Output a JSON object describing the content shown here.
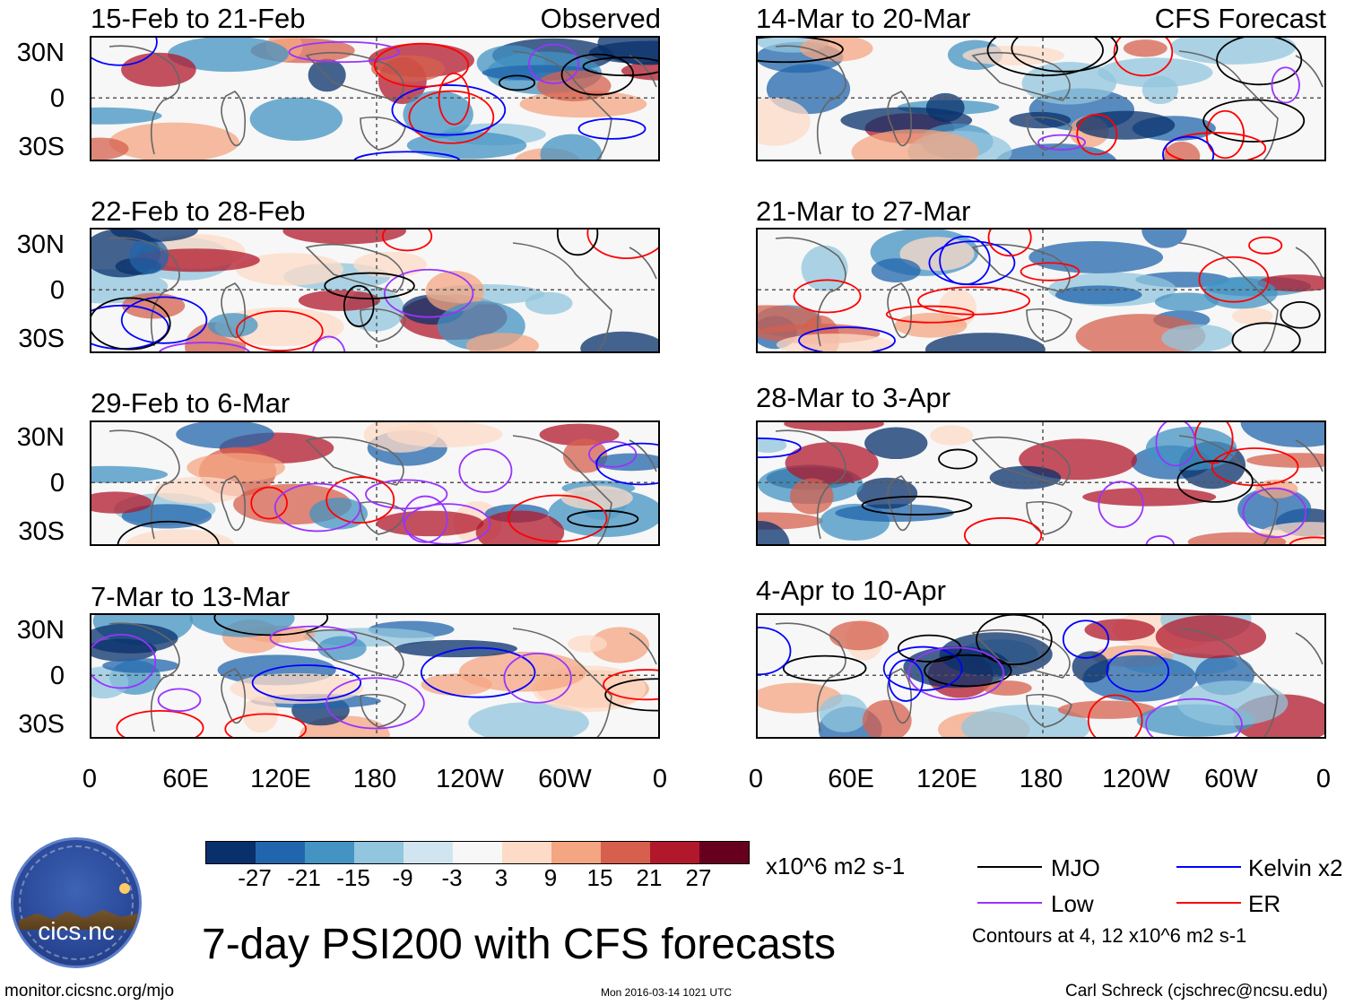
{
  "panels": [
    {
      "title": "15-Feb to 21-Feb",
      "label": "Observed"
    },
    {
      "title": "14-Mar to 20-Mar",
      "label": "CFS Forecast"
    },
    {
      "title": "22-Feb to 28-Feb",
      "label": ""
    },
    {
      "title": "21-Mar to 27-Mar",
      "label": ""
    },
    {
      "title": "29-Feb to 6-Mar",
      "label": ""
    },
    {
      "title": "28-Mar to 3-Apr",
      "label": ""
    },
    {
      "title": "7-Mar to 13-Mar",
      "label": ""
    },
    {
      "title": "4-Apr to 10-Apr",
      "label": ""
    }
  ],
  "y_axis_labels": [
    "30N",
    "0",
    "30S"
  ],
  "x_axis_labels": [
    "0",
    "60E",
    "120E",
    "180",
    "120W",
    "60W",
    "0"
  ],
  "colorbar": {
    "labels": [
      "-27",
      "-21",
      "-15",
      "-9",
      "-3",
      "3",
      "9",
      "15",
      "21",
      "27"
    ],
    "colors": [
      "#08306b",
      "#2166ac",
      "#4393c3",
      "#92c5de",
      "#d1e5f0",
      "#f7f7f7",
      "#fddbc7",
      "#f4a582",
      "#d6604d",
      "#b2182b",
      "#67001f"
    ],
    "units": "x10^6 m2 s-1"
  },
  "legend": {
    "items": [
      {
        "label": "MJO",
        "color": "#000000"
      },
      {
        "label": "Kelvin x2",
        "color": "#0000ff"
      },
      {
        "label": "Low",
        "color": "#9933ff"
      },
      {
        "label": "ER",
        "color": "#ff0000"
      }
    ],
    "contours_note": "Contours at 4, 12 x10^6 m2 s-1"
  },
  "title": "7-day PSI200 with CFS forecasts",
  "footer": {
    "left": "monitor.cicsnc.org/mjo",
    "center": "Mon 2016-03-14 1021 UTC",
    "right": "Carl Schreck (cjschrec@ncsu.edu)"
  },
  "logo": {
    "text": "cics.nc"
  }
}
